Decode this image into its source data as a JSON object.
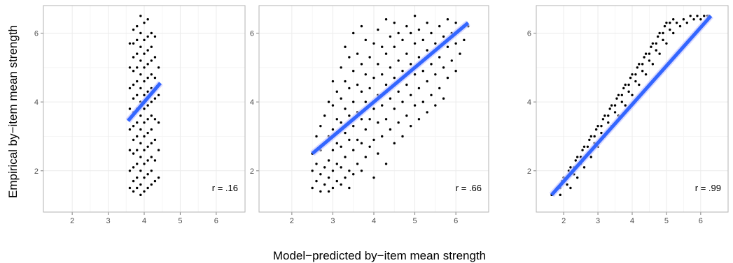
{
  "figure": {
    "xlabel": "Model−predicted by−item mean strength",
    "ylabel": "Empirical by−item mean strength"
  },
  "style": {
    "panel_bg": "#ffffff",
    "panel_border": "#b3b3b3",
    "grid_major": "#ebebeb",
    "grid_minor": "#f5f5f5",
    "point_color": "#000000",
    "fit_color": "#3366ff",
    "ci_color": "#c8c8ff"
  },
  "chart_data": [
    {
      "type": "scatter",
      "xlim": [
        1.2,
        6.8
      ],
      "ylim": [
        0.8,
        6.8
      ],
      "x_ticks": [
        "2",
        "3",
        "4",
        "5",
        "6"
      ],
      "y_ticks": [
        "2",
        "4",
        "6"
      ],
      "grid": true,
      "annotation": "r = .16",
      "fit_line": {
        "x": [
          3.55,
          4.45
        ],
        "y": [
          3.45,
          4.55
        ]
      },
      "points": [
        [
          3.6,
          1.5
        ],
        [
          3.6,
          2.0
        ],
        [
          3.6,
          2.6
        ],
        [
          3.6,
          3.2
        ],
        [
          3.6,
          3.8
        ],
        [
          3.6,
          4.4
        ],
        [
          3.6,
          5.0
        ],
        [
          3.6,
          5.7
        ],
        [
          3.7,
          1.4
        ],
        [
          3.7,
          1.7
        ],
        [
          3.7,
          2.1
        ],
        [
          3.7,
          2.5
        ],
        [
          3.7,
          2.9
        ],
        [
          3.7,
          3.3
        ],
        [
          3.7,
          3.7
        ],
        [
          3.7,
          4.1
        ],
        [
          3.7,
          4.5
        ],
        [
          3.7,
          4.9
        ],
        [
          3.7,
          5.3
        ],
        [
          3.7,
          5.7
        ],
        [
          3.7,
          6.1
        ],
        [
          3.8,
          1.5
        ],
        [
          3.8,
          1.8
        ],
        [
          3.8,
          2.2
        ],
        [
          3.8,
          2.6
        ],
        [
          3.8,
          3.0
        ],
        [
          3.8,
          3.4
        ],
        [
          3.8,
          3.8
        ],
        [
          3.8,
          4.2
        ],
        [
          3.8,
          4.6
        ],
        [
          3.8,
          5.0
        ],
        [
          3.8,
          5.4
        ],
        [
          3.8,
          5.8
        ],
        [
          3.8,
          6.2
        ],
        [
          3.9,
          1.3
        ],
        [
          3.9,
          1.6
        ],
        [
          3.9,
          2.0
        ],
        [
          3.9,
          2.4
        ],
        [
          3.9,
          2.8
        ],
        [
          3.9,
          3.2
        ],
        [
          3.9,
          3.6
        ],
        [
          3.9,
          4.0
        ],
        [
          3.9,
          4.4
        ],
        [
          3.9,
          4.8
        ],
        [
          3.9,
          5.2
        ],
        [
          3.9,
          5.6
        ],
        [
          3.9,
          6.0
        ],
        [
          3.9,
          6.5
        ],
        [
          4.0,
          1.4
        ],
        [
          4.0,
          1.8
        ],
        [
          4.0,
          2.2
        ],
        [
          4.0,
          2.6
        ],
        [
          4.0,
          3.0
        ],
        [
          4.0,
          3.4
        ],
        [
          4.0,
          3.8
        ],
        [
          4.0,
          4.2
        ],
        [
          4.0,
          4.6
        ],
        [
          4.0,
          5.0
        ],
        [
          4.0,
          5.4
        ],
        [
          4.0,
          5.8
        ],
        [
          4.0,
          6.3
        ],
        [
          4.1,
          1.5
        ],
        [
          4.1,
          1.9
        ],
        [
          4.1,
          2.3
        ],
        [
          4.1,
          2.7
        ],
        [
          4.1,
          3.1
        ],
        [
          4.1,
          3.5
        ],
        [
          4.1,
          3.9
        ],
        [
          4.1,
          4.3
        ],
        [
          4.1,
          4.7
        ],
        [
          4.1,
          5.1
        ],
        [
          4.1,
          5.5
        ],
        [
          4.1,
          5.9
        ],
        [
          4.1,
          6.4
        ],
        [
          4.2,
          1.6
        ],
        [
          4.2,
          2.0
        ],
        [
          4.2,
          2.4
        ],
        [
          4.2,
          2.8
        ],
        [
          4.2,
          3.2
        ],
        [
          4.2,
          3.6
        ],
        [
          4.2,
          4.0
        ],
        [
          4.2,
          4.4
        ],
        [
          4.2,
          4.8
        ],
        [
          4.2,
          5.2
        ],
        [
          4.2,
          5.6
        ],
        [
          4.2,
          6.0
        ],
        [
          4.3,
          1.7
        ],
        [
          4.3,
          2.3
        ],
        [
          4.3,
          2.9
        ],
        [
          4.3,
          3.5
        ],
        [
          4.3,
          4.1
        ],
        [
          4.3,
          4.7
        ],
        [
          4.3,
          5.3
        ],
        [
          4.3,
          5.9
        ],
        [
          4.4,
          1.8
        ],
        [
          4.4,
          2.6
        ],
        [
          4.4,
          3.4
        ],
        [
          4.4,
          4.2
        ],
        [
          4.4,
          5.0
        ]
      ]
    },
    {
      "type": "scatter",
      "xlim": [
        1.2,
        6.8
      ],
      "ylim": [
        0.8,
        6.8
      ],
      "x_ticks": [
        "2",
        "3",
        "4",
        "5",
        "6"
      ],
      "y_ticks": [
        "2",
        "4",
        "6"
      ],
      "grid": true,
      "annotation": "r = .66",
      "fit_line": {
        "x": [
          2.5,
          6.3
        ],
        "y": [
          2.5,
          6.3
        ]
      },
      "points": [
        [
          2.5,
          1.5
        ],
        [
          2.5,
          2.0
        ],
        [
          2.5,
          2.5
        ],
        [
          2.6,
          1.7
        ],
        [
          2.6,
          2.2
        ],
        [
          2.6,
          3.0
        ],
        [
          2.7,
          1.4
        ],
        [
          2.7,
          1.9
        ],
        [
          2.7,
          2.6
        ],
        [
          2.7,
          3.3
        ],
        [
          2.8,
          1.6
        ],
        [
          2.8,
          2.1
        ],
        [
          2.8,
          2.8
        ],
        [
          2.8,
          3.6
        ],
        [
          2.9,
          1.4
        ],
        [
          2.9,
          1.8
        ],
        [
          2.9,
          2.3
        ],
        [
          2.9,
          3.0
        ],
        [
          2.9,
          4.0
        ],
        [
          3.0,
          1.5
        ],
        [
          3.0,
          2.0
        ],
        [
          3.0,
          2.6
        ],
        [
          3.0,
          3.2
        ],
        [
          3.0,
          3.9
        ],
        [
          3.0,
          4.6
        ],
        [
          3.1,
          1.7
        ],
        [
          3.1,
          2.2
        ],
        [
          3.1,
          2.8
        ],
        [
          3.1,
          3.5
        ],
        [
          3.1,
          4.3
        ],
        [
          3.2,
          1.6
        ],
        [
          3.2,
          2.1
        ],
        [
          3.2,
          2.7
        ],
        [
          3.2,
          3.4
        ],
        [
          3.2,
          4.1
        ],
        [
          3.2,
          5.0
        ],
        [
          3.3,
          1.8
        ],
        [
          3.3,
          2.4
        ],
        [
          3.3,
          3.1
        ],
        [
          3.3,
          3.8
        ],
        [
          3.3,
          4.6
        ],
        [
          3.3,
          5.6
        ],
        [
          3.4,
          1.5
        ],
        [
          3.4,
          2.0
        ],
        [
          3.4,
          2.9
        ],
        [
          3.4,
          3.6
        ],
        [
          3.4,
          4.4
        ],
        [
          3.4,
          5.3
        ],
        [
          3.5,
          1.9
        ],
        [
          3.5,
          2.6
        ],
        [
          3.5,
          3.3
        ],
        [
          3.5,
          4.0
        ],
        [
          3.5,
          4.9
        ],
        [
          3.5,
          6.0
        ],
        [
          3.6,
          2.2
        ],
        [
          3.6,
          2.9
        ],
        [
          3.6,
          3.7
        ],
        [
          3.6,
          4.5
        ],
        [
          3.6,
          5.4
        ],
        [
          3.7,
          2.0
        ],
        [
          3.7,
          2.8
        ],
        [
          3.7,
          3.5
        ],
        [
          3.7,
          4.3
        ],
        [
          3.7,
          5.1
        ],
        [
          3.7,
          6.2
        ],
        [
          3.8,
          2.4
        ],
        [
          3.8,
          3.2
        ],
        [
          3.8,
          4.0
        ],
        [
          3.8,
          4.8
        ],
        [
          3.8,
          5.8
        ],
        [
          3.9,
          2.7
        ],
        [
          3.9,
          3.5
        ],
        [
          3.9,
          4.4
        ],
        [
          3.9,
          5.3
        ],
        [
          4.0,
          1.8
        ],
        [
          4.0,
          2.9
        ],
        [
          4.0,
          3.8
        ],
        [
          4.0,
          4.7
        ],
        [
          4.0,
          5.7
        ],
        [
          4.1,
          2.5
        ],
        [
          4.1,
          3.4
        ],
        [
          4.1,
          4.2
        ],
        [
          4.1,
          5.1
        ],
        [
          4.1,
          6.1
        ],
        [
          4.2,
          3.0
        ],
        [
          4.2,
          3.9
        ],
        [
          4.2,
          4.8
        ],
        [
          4.2,
          5.6
        ],
        [
          4.3,
          2.2
        ],
        [
          4.3,
          3.5
        ],
        [
          4.3,
          4.5
        ],
        [
          4.3,
          5.4
        ],
        [
          4.3,
          6.4
        ],
        [
          4.4,
          3.2
        ],
        [
          4.4,
          4.1
        ],
        [
          4.4,
          5.0
        ],
        [
          4.4,
          5.9
        ],
        [
          4.5,
          2.8
        ],
        [
          4.5,
          3.8
        ],
        [
          4.5,
          4.7
        ],
        [
          4.5,
          5.6
        ],
        [
          4.5,
          6.3
        ],
        [
          4.6,
          3.4
        ],
        [
          4.6,
          4.3
        ],
        [
          4.6,
          5.2
        ],
        [
          4.6,
          6.0
        ],
        [
          4.7,
          3.0
        ],
        [
          4.7,
          4.0
        ],
        [
          4.7,
          4.9
        ],
        [
          4.7,
          5.8
        ],
        [
          4.8,
          3.6
        ],
        [
          4.8,
          4.5
        ],
        [
          4.8,
          5.4
        ],
        [
          4.8,
          6.2
        ],
        [
          4.9,
          3.3
        ],
        [
          4.9,
          4.2
        ],
        [
          4.9,
          5.1
        ],
        [
          4.9,
          6.0
        ],
        [
          5.0,
          3.9
        ],
        [
          5.0,
          4.8
        ],
        [
          5.0,
          5.7
        ],
        [
          5.0,
          6.5
        ],
        [
          5.1,
          3.5
        ],
        [
          5.1,
          4.4
        ],
        [
          5.1,
          5.3
        ],
        [
          5.1,
          6.1
        ],
        [
          5.2,
          4.0
        ],
        [
          5.2,
          4.9
        ],
        [
          5.2,
          5.8
        ],
        [
          5.3,
          3.7
        ],
        [
          5.3,
          4.6
        ],
        [
          5.3,
          5.5
        ],
        [
          5.3,
          6.3
        ],
        [
          5.4,
          4.2
        ],
        [
          5.4,
          5.1
        ],
        [
          5.4,
          6.0
        ],
        [
          5.5,
          3.9
        ],
        [
          5.5,
          4.8
        ],
        [
          5.5,
          5.7
        ],
        [
          5.6,
          4.4
        ],
        [
          5.6,
          5.3
        ],
        [
          5.6,
          6.2
        ],
        [
          5.7,
          4.1
        ],
        [
          5.7,
          5.0
        ],
        [
          5.7,
          5.9
        ],
        [
          5.8,
          4.7
        ],
        [
          5.8,
          5.6
        ],
        [
          5.8,
          6.4
        ],
        [
          5.9,
          5.2
        ],
        [
          5.9,
          6.0
        ],
        [
          6.0,
          4.9
        ],
        [
          6.0,
          5.7
        ],
        [
          6.0,
          6.3
        ],
        [
          6.1,
          5.4
        ],
        [
          6.1,
          6.1
        ],
        [
          6.2,
          5.8
        ],
        [
          6.3,
          6.2
        ]
      ]
    },
    {
      "type": "scatter",
      "xlim": [
        1.2,
        6.8
      ],
      "ylim": [
        0.8,
        6.8
      ],
      "x_ticks": [
        "2",
        "3",
        "4",
        "5",
        "6"
      ],
      "y_ticks": [
        "2",
        "4",
        "6"
      ],
      "grid": true,
      "annotation": "r = .99",
      "fit_line": {
        "x": [
          1.65,
          6.3
        ],
        "y": [
          1.3,
          6.5
        ]
      },
      "points": [
        [
          1.65,
          1.3
        ],
        [
          1.75,
          1.4
        ],
        [
          1.8,
          1.5
        ],
        [
          1.9,
          1.5
        ],
        [
          1.95,
          1.7
        ],
        [
          2.0,
          1.8
        ],
        [
          2.1,
          1.8
        ],
        [
          2.15,
          2.0
        ],
        [
          2.2,
          2.1
        ],
        [
          2.3,
          2.1
        ],
        [
          2.35,
          2.3
        ],
        [
          2.4,
          2.4
        ],
        [
          2.5,
          2.4
        ],
        [
          2.55,
          2.6
        ],
        [
          2.6,
          2.7
        ],
        [
          2.7,
          2.7
        ],
        [
          2.75,
          2.9
        ],
        [
          2.8,
          3.0
        ],
        [
          2.9,
          3.0
        ],
        [
          2.95,
          3.2
        ],
        [
          3.0,
          3.3
        ],
        [
          3.1,
          3.3
        ],
        [
          3.15,
          3.5
        ],
        [
          3.2,
          3.6
        ],
        [
          3.3,
          3.6
        ],
        [
          3.35,
          3.8
        ],
        [
          3.4,
          3.9
        ],
        [
          3.5,
          3.9
        ],
        [
          3.55,
          4.1
        ],
        [
          3.6,
          4.2
        ],
        [
          3.7,
          4.2
        ],
        [
          3.75,
          4.4
        ],
        [
          3.8,
          4.5
        ],
        [
          3.9,
          4.5
        ],
        [
          3.95,
          4.7
        ],
        [
          4.0,
          4.8
        ],
        [
          4.1,
          4.8
        ],
        [
          4.15,
          5.0
        ],
        [
          4.2,
          5.1
        ],
        [
          4.3,
          5.1
        ],
        [
          4.35,
          5.3
        ],
        [
          4.4,
          5.4
        ],
        [
          4.5,
          5.4
        ],
        [
          4.55,
          5.6
        ],
        [
          4.6,
          5.7
        ],
        [
          4.7,
          5.7
        ],
        [
          4.75,
          5.9
        ],
        [
          4.8,
          6.0
        ],
        [
          4.9,
          6.0
        ],
        [
          4.95,
          6.2
        ],
        [
          5.0,
          6.3
        ],
        [
          5.1,
          6.3
        ],
        [
          5.2,
          6.4
        ],
        [
          1.9,
          1.3
        ],
        [
          2.1,
          1.6
        ],
        [
          2.3,
          1.9
        ],
        [
          2.5,
          2.2
        ],
        [
          2.7,
          2.5
        ],
        [
          2.9,
          2.8
        ],
        [
          3.1,
          3.1
        ],
        [
          3.3,
          3.4
        ],
        [
          3.5,
          3.7
        ],
        [
          3.7,
          4.0
        ],
        [
          3.9,
          4.3
        ],
        [
          4.1,
          4.6
        ],
        [
          4.3,
          4.9
        ],
        [
          4.5,
          5.2
        ],
        [
          4.7,
          5.5
        ],
        [
          4.9,
          5.8
        ],
        [
          5.1,
          6.1
        ],
        [
          5.3,
          6.3
        ],
        [
          5.5,
          6.4
        ],
        [
          5.7,
          6.5
        ],
        [
          5.9,
          6.5
        ],
        [
          6.1,
          6.5
        ],
        [
          6.25,
          6.5
        ],
        [
          2.2,
          1.5
        ],
        [
          2.4,
          1.8
        ],
        [
          2.6,
          2.1
        ],
        [
          2.8,
          2.4
        ],
        [
          3.0,
          2.7
        ],
        [
          3.2,
          3.0
        ],
        [
          3.4,
          3.3
        ],
        [
          3.6,
          3.6
        ],
        [
          3.8,
          3.9
        ],
        [
          4.0,
          4.2
        ],
        [
          4.2,
          4.5
        ],
        [
          4.4,
          4.8
        ],
        [
          4.6,
          5.1
        ],
        [
          4.8,
          5.4
        ],
        [
          5.0,
          5.7
        ],
        [
          5.2,
          6.0
        ],
        [
          5.4,
          6.2
        ],
        [
          5.6,
          6.3
        ],
        [
          5.8,
          6.4
        ],
        [
          6.0,
          6.4
        ],
        [
          6.2,
          6.5
        ]
      ]
    }
  ]
}
